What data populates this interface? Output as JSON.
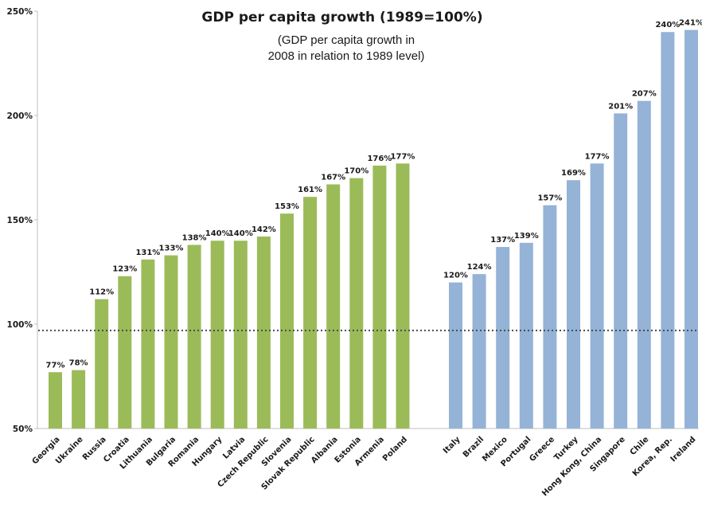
{
  "chart_data": {
    "type": "bar",
    "title": "GDP per capita growth (1989=100%)",
    "subtitle_lines": [
      "(GDP per capita growth in",
      "2008 in relation to 1989 level)"
    ],
    "xlabel": "",
    "ylabel": "",
    "ylim": [
      50,
      250
    ],
    "yticks": [
      50,
      100,
      150,
      200,
      250
    ],
    "ytick_labels": [
      "50%",
      "100%",
      "150%",
      "200%",
      "250%"
    ],
    "reference_line": 97,
    "grid": false,
    "legend": "none",
    "groups": [
      {
        "color": "#9bbb59",
        "categories": [
          "Georgia",
          "Ukraine",
          "Russia",
          "Croatia",
          "Lithuania",
          "Bulgaria",
          "Romania",
          "Hungary",
          "Latvia",
          "Czech Republic",
          "Slovenia",
          "Slovak Republic",
          "Albania",
          "Estonia",
          "Armenia",
          "Poland"
        ],
        "values": [
          77,
          78,
          112,
          123,
          131,
          133,
          138,
          140,
          140,
          142,
          153,
          161,
          167,
          170,
          176,
          177
        ],
        "labels": [
          "77%",
          "78%",
          "112%",
          "123%",
          "131%",
          "133%",
          "138%",
          "140%",
          "140%",
          "142%",
          "153%",
          "161%",
          "167%",
          "170%",
          "176%",
          "177%"
        ]
      },
      {
        "color": "#95b3d7",
        "categories": [
          "Italy",
          "Brazil",
          "Mexico",
          "Portugal",
          "Greece",
          "Turkey",
          "Hong Kong, China",
          "Singapore",
          "Chile",
          "Korea, Rep.",
          "Ireland"
        ],
        "values": [
          120,
          124,
          137,
          139,
          157,
          169,
          177,
          201,
          207,
          240,
          241
        ],
        "labels": [
          "120%",
          "124%",
          "137%",
          "139%",
          "157%",
          "169%",
          "177%",
          "201%",
          "207%",
          "240%",
          "241%"
        ]
      }
    ],
    "colors": {
      "axis": "#bfbfbf",
      "reference_line": "#4a4a4a",
      "text": "#1a1a1a"
    }
  }
}
